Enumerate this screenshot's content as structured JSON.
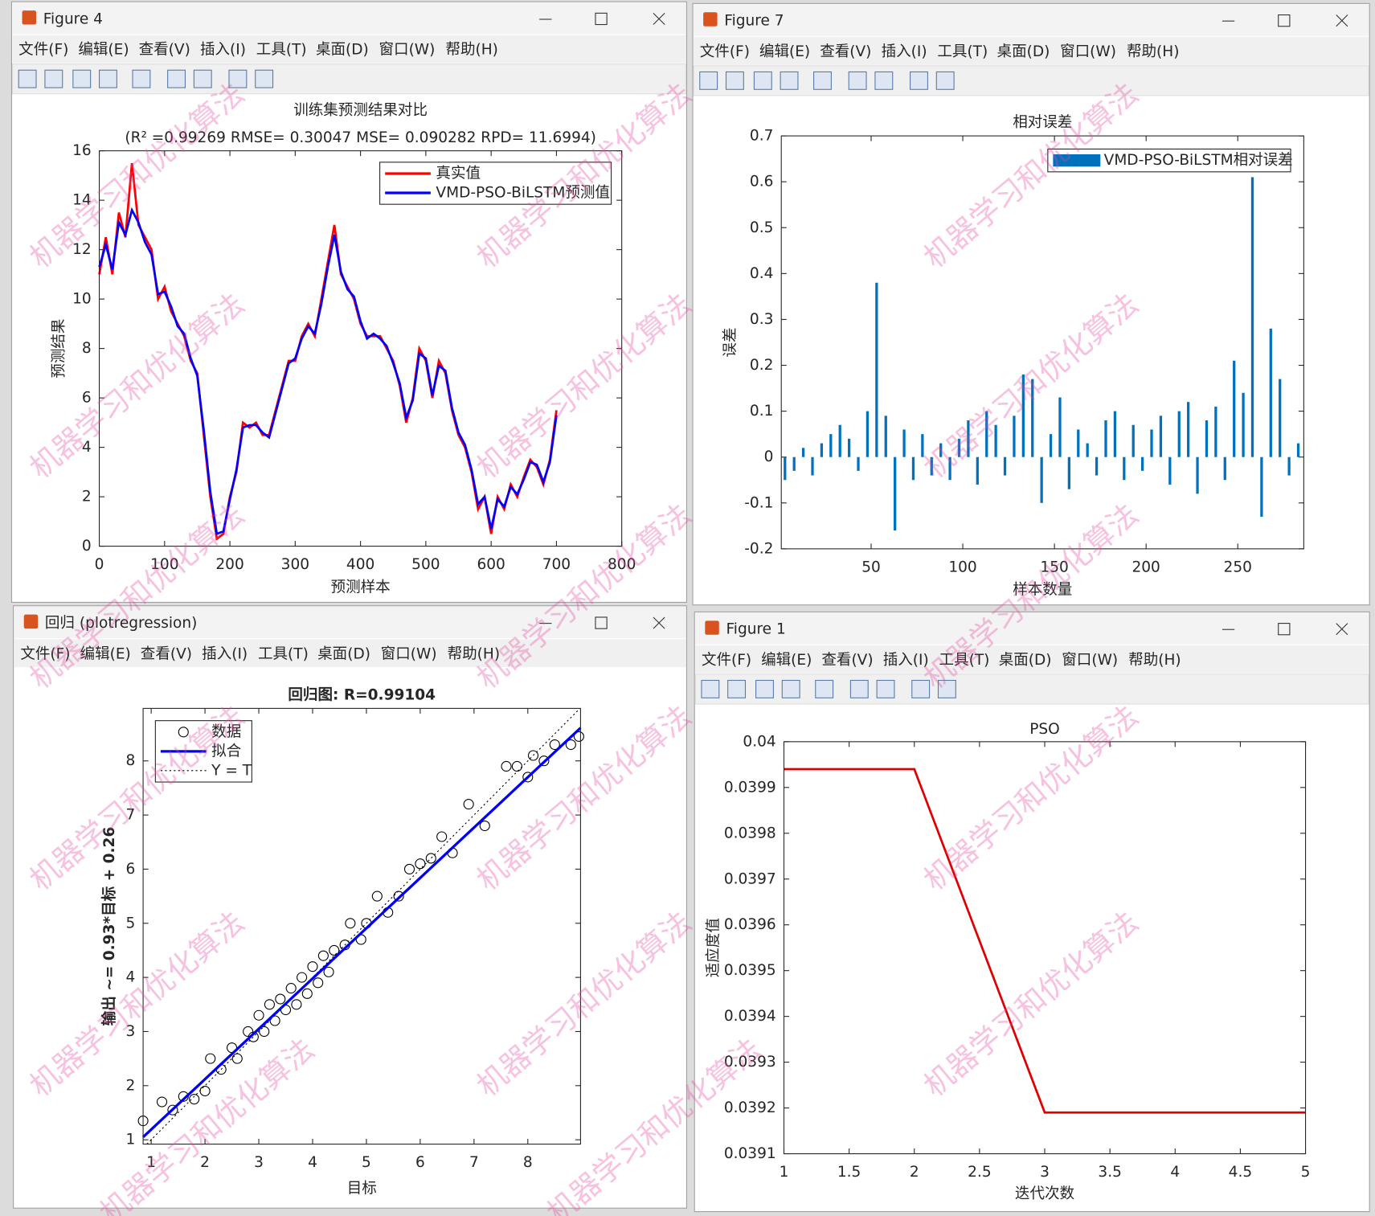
{
  "watermark": "机器学习和优化算法",
  "menu": [
    "文件(F)",
    "编辑(E)",
    "查看(V)",
    "插入(I)",
    "工具(T)",
    "桌面(D)",
    "窗口(W)",
    "帮助(H)"
  ],
  "windows": [
    {
      "title": "Figure 4"
    },
    {
      "title": "Figure 7"
    },
    {
      "title": "回归 (plotregression)"
    },
    {
      "title": "Figure 1"
    }
  ],
  "chart_data": [
    {
      "type": "line",
      "title": "训练集预测结果对比",
      "subtitle": "(R² =0.99269 RMSE= 0.30047 MSE= 0.090282 RPD= 11.6994)",
      "xlabel": "预测样本",
      "ylabel": "预测结果",
      "xlim": [
        0,
        800
      ],
      "xticks": [
        0,
        100,
        200,
        300,
        400,
        500,
        600,
        700,
        800
      ],
      "ylim": [
        0,
        16
      ],
      "yticks": [
        0,
        2,
        4,
        6,
        8,
        10,
        12,
        14,
        16
      ],
      "legend": "upper right",
      "x": [
        0,
        10,
        20,
        30,
        40,
        50,
        60,
        70,
        80,
        90,
        100,
        110,
        120,
        130,
        140,
        150,
        160,
        170,
        180,
        190,
        200,
        210,
        220,
        230,
        240,
        250,
        260,
        270,
        280,
        290,
        300,
        310,
        320,
        330,
        340,
        350,
        360,
        370,
        380,
        390,
        400,
        410,
        420,
        430,
        440,
        450,
        460,
        470,
        480,
        490,
        500,
        510,
        520,
        530,
        540,
        550,
        560,
        570,
        580,
        590,
        600,
        610,
        620,
        630,
        640,
        650,
        660,
        670,
        680,
        690,
        700
      ],
      "series": [
        {
          "name": "真实值",
          "color": "#ff0000",
          "values": [
            11,
            12.5,
            11,
            13.5,
            12.5,
            15.5,
            13,
            12.5,
            12,
            10,
            10.5,
            9.5,
            9,
            8.5,
            7.5,
            7,
            4.5,
            2,
            0.3,
            0.5,
            2,
            3,
            5,
            4.8,
            5,
            4.5,
            4.5,
            5.5,
            6.5,
            7.5,
            7.5,
            8.5,
            9,
            8.5,
            10,
            11.5,
            13,
            11,
            10.5,
            10,
            9,
            8.5,
            8.5,
            8.5,
            8,
            7.5,
            6.5,
            5,
            6,
            8,
            7.5,
            6,
            7.5,
            7,
            5.5,
            4.5,
            4,
            3,
            1.5,
            2,
            0.5,
            2,
            1.5,
            2.5,
            2,
            2.8,
            3.5,
            3.2,
            2.5,
            3.5,
            5.5
          ]
        },
        {
          "name": "VMD-PSO-BiLSTM预测值",
          "color": "#0000ff",
          "values": [
            11.3,
            12.2,
            11.2,
            13.1,
            12.6,
            13.6,
            13.1,
            12.3,
            11.8,
            10.2,
            10.3,
            9.7,
            8.9,
            8.6,
            7.6,
            6.9,
            4.7,
            2.2,
            0.5,
            0.6,
            1.9,
            3.1,
            4.8,
            4.9,
            4.9,
            4.6,
            4.4,
            5.4,
            6.4,
            7.4,
            7.6,
            8.4,
            8.9,
            8.6,
            9.8,
            11.3,
            12.6,
            11.1,
            10.4,
            10.1,
            9.1,
            8.4,
            8.6,
            8.4,
            8.1,
            7.4,
            6.6,
            5.2,
            5.9,
            7.8,
            7.6,
            6.1,
            7.3,
            7.1,
            5.6,
            4.6,
            4.1,
            3.1,
            1.7,
            2,
            0.7,
            1.9,
            1.6,
            2.4,
            2.1,
            2.7,
            3.4,
            3.3,
            2.6,
            3.4,
            5.3
          ]
        }
      ]
    },
    {
      "type": "bar",
      "title": "相对误差",
      "xlabel": "样本数量",
      "ylabel": "误差",
      "xlim": [
        1,
        286
      ],
      "xticks": [
        50,
        100,
        150,
        200,
        250
      ],
      "ylim": [
        -0.2,
        0.7
      ],
      "yticks": [
        -0.2,
        -0.1,
        0,
        0.1,
        0.2,
        0.3,
        0.4,
        0.5,
        0.6,
        0.7
      ],
      "legend": "upper right",
      "x": [
        3,
        8,
        13,
        18,
        23,
        28,
        33,
        38,
        43,
        48,
        53,
        58,
        63,
        68,
        73,
        78,
        83,
        88,
        93,
        98,
        103,
        108,
        113,
        118,
        123,
        128,
        133,
        138,
        143,
        148,
        153,
        158,
        163,
        168,
        173,
        178,
        183,
        188,
        193,
        198,
        203,
        208,
        213,
        218,
        223,
        228,
        233,
        238,
        243,
        248,
        253,
        258,
        263,
        268,
        273,
        278,
        283
      ],
      "series": [
        {
          "name": "VMD-PSO-BiLSTM相对误差",
          "color": "#0072bd",
          "values": [
            -0.05,
            -0.03,
            0.02,
            -0.04,
            0.03,
            0.05,
            0.07,
            0.04,
            -0.03,
            0.1,
            0.38,
            0.09,
            -0.16,
            0.06,
            -0.05,
            0.05,
            -0.04,
            0.03,
            -0.05,
            0.04,
            0.08,
            -0.06,
            0.1,
            0.07,
            -0.04,
            0.09,
            0.18,
            0.17,
            -0.1,
            0.05,
            0.13,
            -0.07,
            0.06,
            0.03,
            -0.04,
            0.08,
            0.1,
            -0.05,
            0.07,
            -0.03,
            0.06,
            0.09,
            -0.06,
            0.1,
            0.12,
            -0.08,
            0.08,
            0.11,
            -0.05,
            0.21,
            0.14,
            0.61,
            -0.13,
            0.28,
            0.17,
            -0.04,
            0.03
          ]
        }
      ]
    },
    {
      "type": "scatter",
      "title": "回归图: R=0.99104",
      "xlabel": "目标",
      "ylabel": "输出 ~= 0.93*目标 + 0.26",
      "xlim": [
        0.85,
        8.98
      ],
      "xticks": [
        1,
        2,
        3,
        4,
        5,
        6,
        7,
        8
      ],
      "ylim": [
        0.92,
        8.97
      ],
      "yticks": [
        1,
        2,
        3,
        4,
        5,
        6,
        7,
        8
      ],
      "legend": "upper left",
      "x": [
        0.85,
        1.2,
        1.4,
        1.6,
        1.8,
        2.0,
        2.1,
        2.3,
        2.5,
        2.6,
        2.8,
        2.9,
        3.0,
        3.1,
        3.2,
        3.3,
        3.4,
        3.5,
        3.6,
        3.7,
        3.8,
        3.9,
        4.0,
        4.1,
        4.2,
        4.3,
        4.4,
        4.6,
        4.7,
        4.9,
        5.0,
        5.2,
        5.4,
        5.6,
        5.8,
        6.0,
        6.2,
        6.4,
        6.6,
        6.9,
        7.2,
        7.6,
        7.8,
        8.0,
        8.1,
        8.3,
        8.5,
        8.8,
        8.95
      ],
      "series": [
        {
          "name": "数据",
          "color": "#000000",
          "values": [
            1.35,
            1.7,
            1.55,
            1.8,
            1.75,
            1.9,
            2.5,
            2.3,
            2.7,
            2.5,
            3.0,
            2.9,
            3.3,
            3.0,
            3.5,
            3.2,
            3.6,
            3.4,
            3.8,
            3.5,
            4.0,
            3.7,
            4.2,
            3.9,
            4.4,
            4.1,
            4.5,
            4.6,
            5.0,
            4.7,
            5.0,
            5.5,
            5.2,
            5.5,
            6.0,
            6.1,
            6.2,
            6.6,
            6.3,
            7.2,
            6.8,
            7.9,
            7.9,
            7.7,
            8.1,
            8.0,
            8.3,
            8.3,
            8.45
          ]
        },
        {
          "name": "拟合",
          "color": "#0000ff",
          "x": [
            0.85,
            8.98
          ],
          "values": [
            1.05,
            8.61
          ]
        },
        {
          "name": "Y = T",
          "color": "#000000"
        }
      ]
    },
    {
      "type": "line",
      "title": "PSO",
      "xlabel": "迭代次数",
      "ylabel": "适应度值",
      "xlim": [
        1,
        5
      ],
      "xticks": [
        1,
        1.5,
        2,
        2.5,
        3,
        3.5,
        4,
        4.5,
        5
      ],
      "ylim": [
        0.0391,
        0.04
      ],
      "yticks": [
        0.0391,
        0.0392,
        0.0393,
        0.0394,
        0.0395,
        0.0396,
        0.0397,
        0.0398,
        0.0399,
        0.04
      ],
      "x": [
        1,
        2,
        3,
        4,
        5
      ],
      "series": [
        {
          "color": "#e00000",
          "values": [
            0.03994,
            0.03994,
            0.03919,
            0.03919,
            0.03919
          ]
        }
      ]
    }
  ]
}
